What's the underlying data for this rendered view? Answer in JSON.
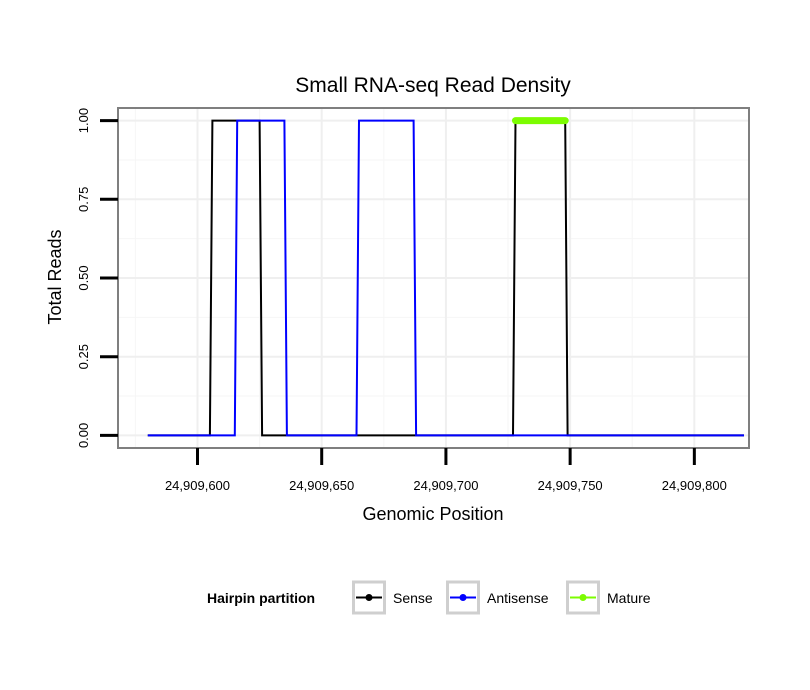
{
  "chart_data": {
    "type": "line",
    "title": "Small RNA-seq Read Density",
    "xlabel": "Genomic Position",
    "ylabel": "Total Reads",
    "xlim": [
      24909568,
      24909822
    ],
    "ylim": [
      -0.04,
      1.04
    ],
    "x_ticks": [
      24909600,
      24909650,
      24909700,
      24909750,
      24909800
    ],
    "x_tick_labels": [
      "24,909,600",
      "24,909,650",
      "24,909,700",
      "24,909,750",
      "24,909,800"
    ],
    "y_ticks": [
      0,
      0.25,
      0.5,
      0.75,
      1
    ],
    "y_tick_labels": [
      "0.00",
      "0.25",
      "0.50",
      "0.75",
      "1.00"
    ],
    "grid": true,
    "legend_position": "bottom",
    "legend_title": "Hairpin partition",
    "series": [
      {
        "name": "Sense",
        "color": "#000000",
        "x": [
          24909580,
          24909605,
          24909606,
          24909625,
          24909626,
          24909727,
          24909728,
          24909748,
          24909749,
          24909820
        ],
        "y": [
          0,
          0,
          1,
          1,
          0,
          0,
          1,
          1,
          0,
          0
        ]
      },
      {
        "name": "Antisense",
        "color": "#0000ff",
        "x": [
          24909580,
          24909615,
          24909616,
          24909635,
          24909636,
          24909664,
          24909665,
          24909687,
          24909688,
          24909820
        ],
        "y": [
          0,
          0,
          1,
          1,
          0,
          0,
          1,
          1,
          0,
          0
        ]
      },
      {
        "name": "Mature",
        "color": "#7cfc00",
        "x": [
          24909728,
          24909748
        ],
        "y": [
          1,
          1
        ]
      }
    ]
  }
}
